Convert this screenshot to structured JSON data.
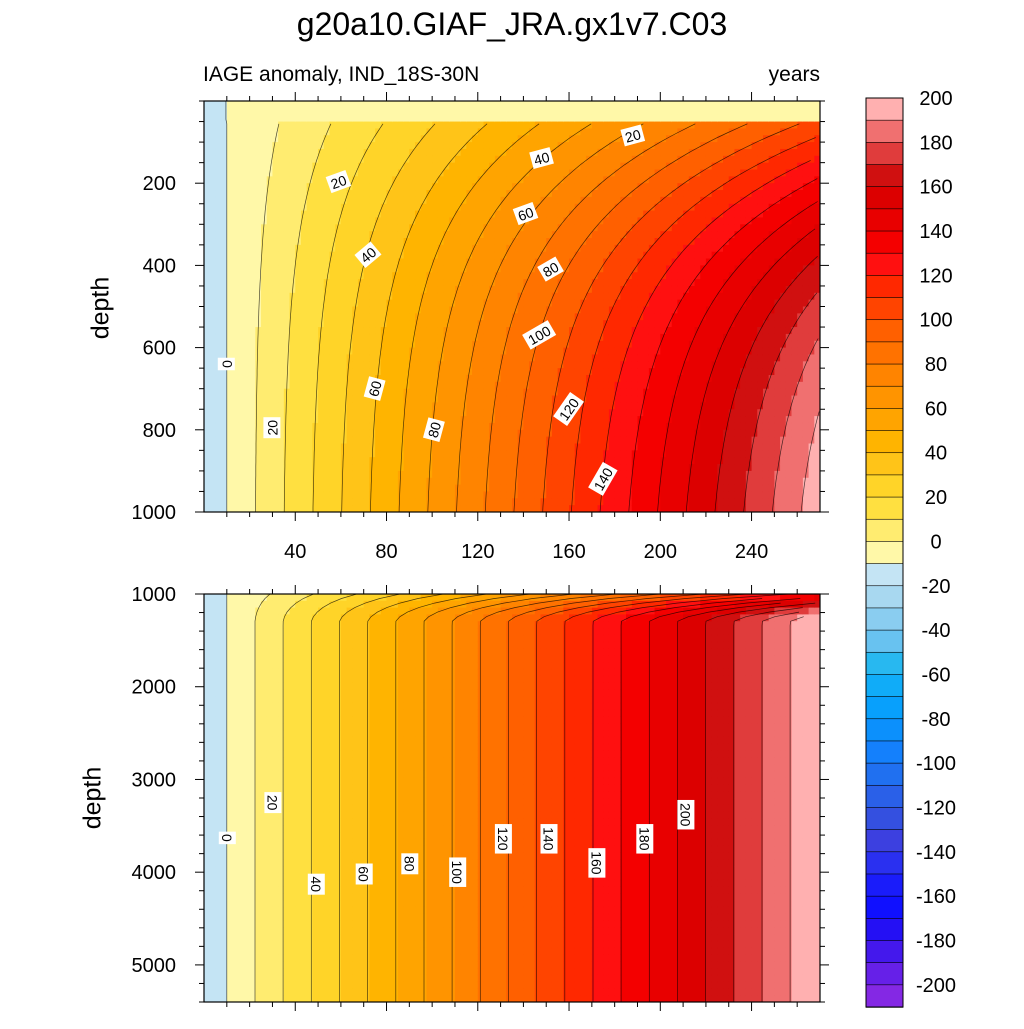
{
  "chart_data": {
    "type": "heatmap",
    "title": "g20a10.GIAF_JRA.gx1v7.C03",
    "subtitle_left": "IAGE anomaly, IND_18S-30N",
    "subtitle_right": "years",
    "ylabel": "depth",
    "xlim": [
      0,
      270
    ],
    "x_ticks": [
      "40",
      "80",
      "120",
      "160",
      "200",
      "240"
    ],
    "x_tick_values": [
      40,
      80,
      120,
      160,
      200,
      240
    ],
    "colorbar": {
      "labels": [
        "200",
        "180",
        "160",
        "140",
        "120",
        "100",
        "80",
        "60",
        "40",
        "20",
        "0",
        "-20",
        "-40",
        "-60",
        "-80",
        "-100",
        "-120",
        "-140",
        "-160",
        "-180",
        "-200"
      ],
      "values": [
        200,
        180,
        160,
        140,
        120,
        100,
        80,
        60,
        40,
        20,
        0,
        -20,
        -40,
        -60,
        -80,
        -100,
        -120,
        -140,
        -160,
        -180,
        -200
      ],
      "colors": [
        "#ffb0b0",
        "#f07070",
        "#e03c3c",
        "#d01010",
        "#dc0000",
        "#e80000",
        "#f40000",
        "#ff1010",
        "#ff2800",
        "#ff4400",
        "#ff6000",
        "#ff7200",
        "#ff8400",
        "#ff9400",
        "#ffa400",
        "#ffb400",
        "#ffc418",
        "#ffd428",
        "#ffe040",
        "#ffec70",
        "#fff8a8",
        "#c4e4f4",
        "#a8d8f0",
        "#8acdf0",
        "#68c2f0",
        "#28b8f0",
        "#10acf8",
        "#08a0fc",
        "#0c90fc",
        "#1480fc",
        "#2070f0",
        "#2a60e8",
        "#3450e0",
        "#3c40e0",
        "#2a30f0",
        "#1a1cfa",
        "#1010ff",
        "#2410f4",
        "#4418ec",
        "#6620e8",
        "#8428e4"
      ]
    },
    "panels": [
      {
        "name": "upper",
        "ylim": [
          0,
          1000
        ],
        "y_ticks": [
          "200",
          "400",
          "600",
          "800",
          "1000"
        ],
        "y_tick_values": [
          200,
          400,
          600,
          800,
          1000
        ],
        "contour_labels": [
          {
            "text": "0",
            "x": 10,
            "y": 640,
            "angle": -90
          },
          {
            "text": "20",
            "x": 30,
            "y": 795,
            "angle": -90
          },
          {
            "text": "20",
            "x": 59,
            "y": 197,
            "angle": -20
          },
          {
            "text": "20",
            "x": 188,
            "y": 85,
            "angle": -15
          },
          {
            "text": "40",
            "x": 72,
            "y": 375,
            "angle": -40
          },
          {
            "text": "40",
            "x": 148,
            "y": 140,
            "angle": -15
          },
          {
            "text": "60",
            "x": 75,
            "y": 700,
            "angle": -75
          },
          {
            "text": "60",
            "x": 141,
            "y": 275,
            "angle": -20
          },
          {
            "text": "80",
            "x": 101,
            "y": 800,
            "angle": -75
          },
          {
            "text": "80",
            "x": 152,
            "y": 410,
            "angle": -30
          },
          {
            "text": "100",
            "x": 147,
            "y": 570,
            "angle": -30
          },
          {
            "text": "120",
            "x": 160,
            "y": 750,
            "angle": -55
          },
          {
            "text": "140",
            "x": 175,
            "y": 920,
            "angle": -60
          }
        ]
      },
      {
        "name": "lower",
        "ylim": [
          1000,
          5400
        ],
        "y_ticks": [
          "1000",
          "2000",
          "3000",
          "4000",
          "5000"
        ],
        "y_tick_values": [
          1000,
          2000,
          3000,
          4000,
          5000
        ],
        "contour_labels": [
          {
            "text": "0",
            "x": 10,
            "y": 3630,
            "angle": 90
          },
          {
            "text": "20",
            "x": 30,
            "y": 3250,
            "angle": 90
          },
          {
            "text": "40",
            "x": 49,
            "y": 4130,
            "angle": 90
          },
          {
            "text": "60",
            "x": 70,
            "y": 4020,
            "angle": 90
          },
          {
            "text": "80",
            "x": 90,
            "y": 3910,
            "angle": 90
          },
          {
            "text": "100",
            "x": 111,
            "y": 4000,
            "angle": 90
          },
          {
            "text": "120",
            "x": 131,
            "y": 3640,
            "angle": 90
          },
          {
            "text": "140",
            "x": 151,
            "y": 3640,
            "angle": 90
          },
          {
            "text": "160",
            "x": 172,
            "y": 3900,
            "angle": 90
          },
          {
            "text": "180",
            "x": 193,
            "y": 3640,
            "angle": 90
          },
          {
            "text": "200",
            "x": 211,
            "y": 3380,
            "angle": 90
          }
        ]
      }
    ]
  }
}
